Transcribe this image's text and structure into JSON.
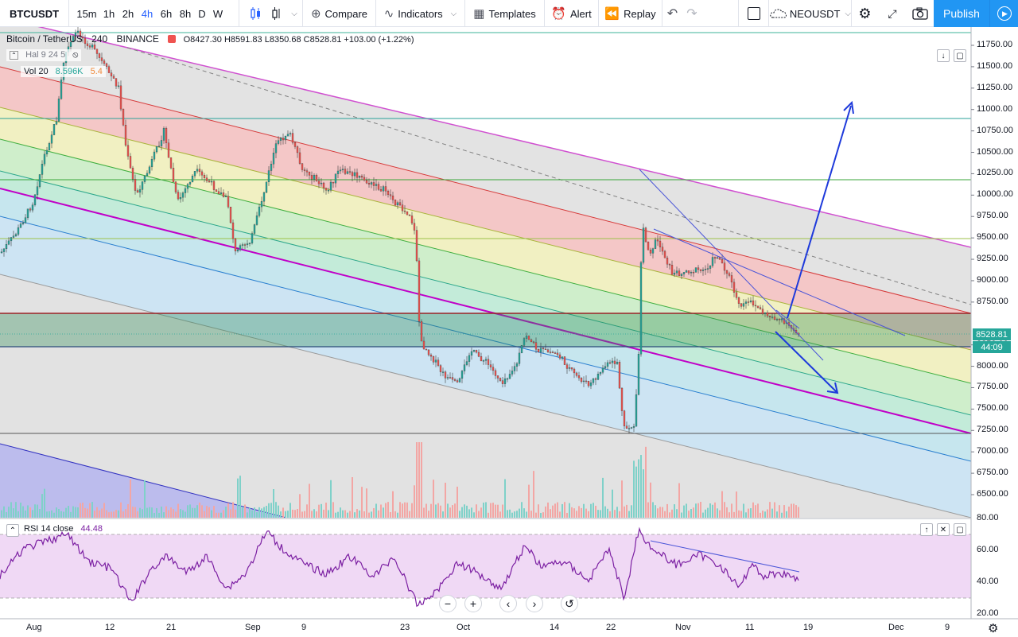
{
  "toolbar": {
    "symbol": "BTCUSDT",
    "intervals": [
      "15m",
      "1h",
      "2h",
      "4h",
      "6h",
      "8h",
      "D",
      "W"
    ],
    "active_interval": "4h",
    "compare": "Compare",
    "indicators": "Indicators",
    "templates": "Templates",
    "alert": "Alert",
    "replay": "Replay",
    "compare_symbol": "NEOUSDT",
    "publish": "Publish"
  },
  "legend": {
    "title": "Bitcoin / TetherUS",
    "interval": "240",
    "exchange": "BINANCE",
    "ohlc": "O8427.30 H8591.83 L8350.68 C8528.81 +103.00 (+1.22%)",
    "hal": "Hal 9 24 5",
    "vol": "Vol 20",
    "vol_value1": "8.596K",
    "vol_value2": "5.4"
  },
  "rsi": {
    "label": "RSI 14 close",
    "value": "44.48"
  },
  "price_axis": [
    "11750.00",
    "11500.00",
    "11250.00",
    "11000.00",
    "10750.00",
    "10500.00",
    "10250.00",
    "10000.00",
    "9750.00",
    "9500.00",
    "9250.00",
    "9000.00",
    "8750.00",
    "8250.00",
    "8000.00",
    "7750.00",
    "7500.00",
    "7250.00",
    "7000.00",
    "6750.00",
    "6500.00"
  ],
  "rsi_axis": [
    "80.00",
    "60.00",
    "40.00",
    "20.00"
  ],
  "last_price": "8528.81",
  "countdown": "44:09",
  "time_axis": [
    "Aug",
    "12",
    "21",
    "Sep",
    "9",
    "23",
    "Oct",
    "14",
    "22",
    "Nov",
    "11",
    "19",
    "Dec",
    "9"
  ],
  "colors": {
    "up": "#26a69a",
    "down": "#ef5350",
    "accent": "#2196f3",
    "trend": "#1e3adb",
    "rsi": "#7b1fa2"
  },
  "chart_data": {
    "type": "candlestick",
    "price_range": [
      6500,
      11900
    ],
    "last_close": 8528.81,
    "last_bar": {
      "open": 8427.3,
      "high": 8591.83,
      "low": 8350.68,
      "close": 8528.81,
      "change": 103.0,
      "change_pct": 1.22
    },
    "rsi_last": 44.48,
    "rsi_levels": [
      70,
      30
    ],
    "horizontal_levels": [
      10930,
      10250,
      9590,
      8760,
      8400,
      7420
    ]
  }
}
